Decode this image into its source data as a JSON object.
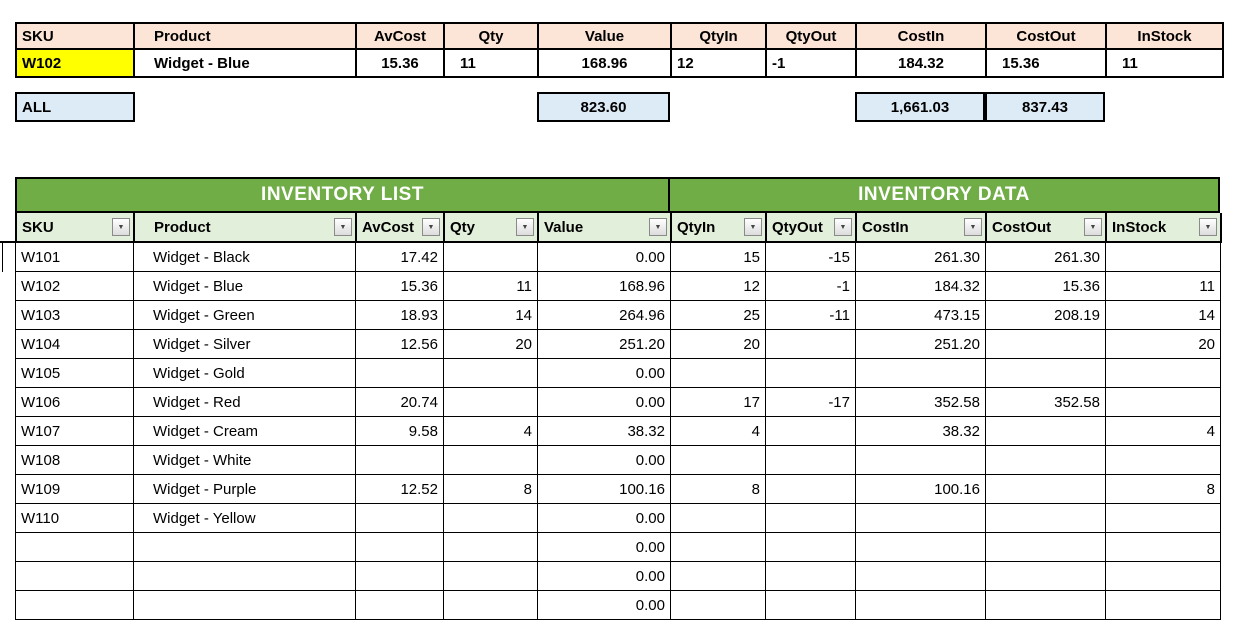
{
  "colors": {
    "header_peach": "#FCE4D6",
    "highlight_yellow": "#FFFF00",
    "summary_blue": "#DDEBF7",
    "banner_green": "#70AD47",
    "filter_row_green": "#E2EFDA",
    "banner_text": "#FFFFFF",
    "grid_border": "#000000"
  },
  "icons": {
    "filter_dropdown_icon": "▼"
  },
  "top_table": {
    "columns": [
      "SKU",
      "Product",
      "AvCost",
      "Qty",
      "Value",
      "QtyIn",
      "QtyOut",
      "CostIn",
      "CostOut",
      "InStock"
    ],
    "selected_row": [
      "W102",
      "Widget - Blue",
      "15.36",
      "11",
      "168.96",
      "12",
      "-1",
      "184.32",
      "15.36",
      "11"
    ]
  },
  "summary_row": {
    "label": "ALL",
    "total_value": "823.60",
    "total_costin": "1,661.03",
    "total_costout": "837.43"
  },
  "main_table": {
    "banners": [
      {
        "label": "INVENTORY LIST"
      },
      {
        "label": "INVENTORY DATA"
      }
    ],
    "columns": [
      "SKU",
      "Product",
      "AvCost",
      "Qty",
      "Value",
      "QtyIn",
      "QtyOut",
      "CostIn",
      "CostOut",
      "InStock"
    ],
    "rows": [
      [
        "W101",
        "Widget - Black",
        "17.42",
        "",
        "0.00",
        "15",
        "-15",
        "261.30",
        "261.30",
        ""
      ],
      [
        "W102",
        "Widget - Blue",
        "15.36",
        "11",
        "168.96",
        "12",
        "-1",
        "184.32",
        "15.36",
        "11"
      ],
      [
        "W103",
        "Widget - Green",
        "18.93",
        "14",
        "264.96",
        "25",
        "-11",
        "473.15",
        "208.19",
        "14"
      ],
      [
        "W104",
        "Widget - Silver",
        "12.56",
        "20",
        "251.20",
        "20",
        "",
        "251.20",
        "",
        "20"
      ],
      [
        "W105",
        "Widget - Gold",
        "",
        "",
        "0.00",
        "",
        "",
        "",
        "",
        ""
      ],
      [
        "W106",
        "Widget - Red",
        "20.74",
        "",
        "0.00",
        "17",
        "-17",
        "352.58",
        "352.58",
        ""
      ],
      [
        "W107",
        "Widget - Cream",
        "9.58",
        "4",
        "38.32",
        "4",
        "",
        "38.32",
        "",
        "4"
      ],
      [
        "W108",
        "Widget - White",
        "",
        "",
        "0.00",
        "",
        "",
        "",
        "",
        ""
      ],
      [
        "W109",
        "Widget - Purple",
        "12.52",
        "8",
        "100.16",
        "8",
        "",
        "100.16",
        "",
        "8"
      ],
      [
        "W110",
        "Widget - Yellow",
        "",
        "",
        "0.00",
        "",
        "",
        "",
        "",
        ""
      ],
      [
        "",
        "",
        "",
        "",
        "0.00",
        "",
        "",
        "",
        "",
        ""
      ],
      [
        "",
        "",
        "",
        "",
        "0.00",
        "",
        "",
        "",
        "",
        ""
      ],
      [
        "",
        "",
        "",
        "",
        "0.00",
        "",
        "",
        "",
        "",
        ""
      ]
    ]
  }
}
